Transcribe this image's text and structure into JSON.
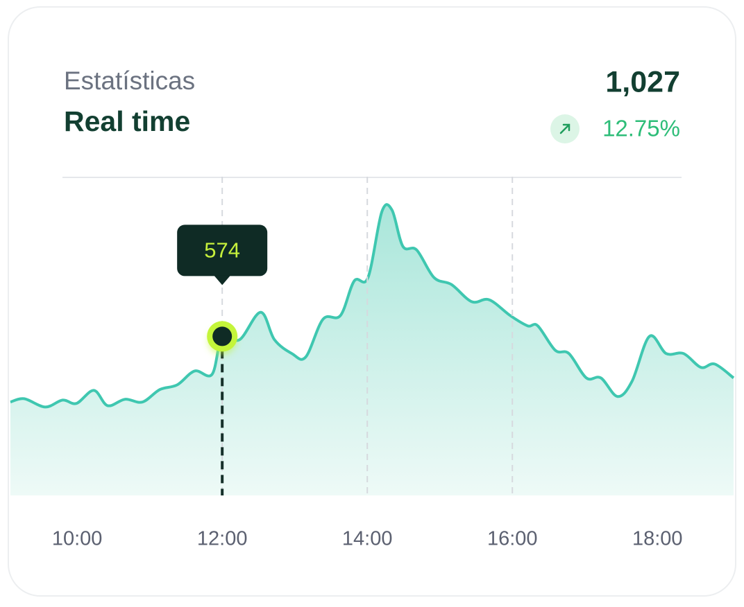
{
  "chart_data": {
    "type": "area",
    "title": "Estatísticas",
    "subtitle": "Real time",
    "headline": "1,027",
    "change": "12.75%",
    "x": [
      9.08,
      9.27,
      9.56,
      9.8,
      9.99,
      10.23,
      10.42,
      10.66,
      10.9,
      11.14,
      11.38,
      11.62,
      11.86,
      12,
      12.24,
      12.53,
      12.72,
      12.96,
      13.15,
      13.39,
      13.63,
      13.82,
      14.01,
      14.2,
      14.34,
      14.49,
      14.68,
      14.92,
      15.16,
      15.44,
      15.68,
      15.97,
      16.21,
      16.35,
      16.59,
      16.78,
      17.02,
      17.22,
      17.45,
      17.65,
      17.89,
      18.12,
      18.36,
      18.6,
      18.79,
      19.05
    ],
    "values": [
      337,
      349,
      319,
      344,
      332,
      379,
      324,
      347,
      337,
      382,
      399,
      449,
      437,
      574,
      562,
      661,
      562,
      512,
      499,
      636,
      649,
      774,
      786,
      1023,
      1030,
      899,
      886,
      786,
      761,
      699,
      706,
      649,
      612,
      612,
      524,
      512,
      424,
      424,
      357,
      412,
      574,
      512,
      512,
      462,
      474,
      424
    ],
    "color": "#3fc7b0",
    "highlight_index": 13,
    "xlim": [
      9.08,
      19.05
    ],
    "ylim": [
      0,
      1150
    ],
    "xticks": [
      {
        "value": 10,
        "label": "10:00"
      },
      {
        "value": 12,
        "label": "12:00"
      },
      {
        "value": 14,
        "label": "14:00"
      },
      {
        "value": 16,
        "label": "16:00"
      },
      {
        "value": 18,
        "label": "18:00"
      }
    ],
    "grid": true
  }
}
